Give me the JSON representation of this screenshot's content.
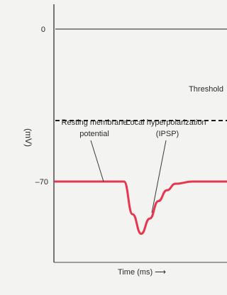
{
  "chart_data": {
    "type": "line",
    "title": "",
    "xlabel": "Time (ms) ⟶",
    "ylabel": "(mV)",
    "y_ticks": [
      "0",
      "–70"
    ],
    "ylim": [
      -100,
      10
    ],
    "x_unit": "ms",
    "grid": false,
    "reference_lines": [
      {
        "label": "Threshold",
        "value": -42,
        "style": "dashed"
      }
    ],
    "zero_line": {
      "value": 0,
      "style": "solid"
    },
    "series": [
      {
        "name": "",
        "color": "#e8364f",
        "x": [
          0,
          40,
          45,
          50,
          55,
          60,
          65,
          70,
          80,
          90,
          100
        ],
        "y": [
          -70,
          -70,
          -85,
          -94,
          -87,
          -79,
          -74,
          -71,
          -70,
          -70,
          -70
        ]
      }
    ],
    "annotations": [
      {
        "text_lines": [
          "Resting membrane",
          "potential"
        ],
        "points_to_x": 25
      },
      {
        "text_lines": [
          "Local hyperpolarization",
          "(IPSP)"
        ],
        "points_to_x": 51
      }
    ]
  },
  "colors": {
    "trace": "#e8364f",
    "axis": "#4a4a4a",
    "background": "#f3f3f2"
  }
}
